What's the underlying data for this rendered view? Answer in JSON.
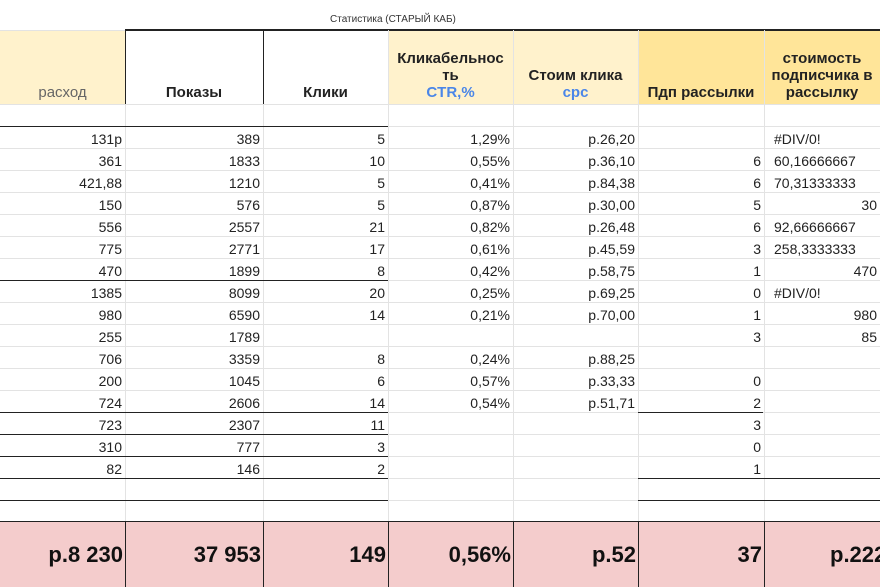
{
  "sheet_title": "Статистика (СТАРЫЙ КАБ)",
  "columns": [
    {
      "key": "rashod",
      "label": "расход",
      "sub": ""
    },
    {
      "key": "pokazy",
      "label": "Показы",
      "sub": ""
    },
    {
      "key": "kliki",
      "label": "Клики",
      "sub": ""
    },
    {
      "key": "ctr",
      "label": "Кликабельнос ть",
      "sub": "CTR,%"
    },
    {
      "key": "cpc",
      "label": "Стоим клика",
      "sub": "cpc"
    },
    {
      "key": "podp",
      "label": "Пдп рассылки",
      "sub": ""
    },
    {
      "key": "cost_sub",
      "label": "стоимость подписчика в рассылку",
      "sub": ""
    }
  ],
  "rows": [
    [
      "131р",
      "389",
      "5",
      "1,29%",
      "р.26,20",
      "",
      "#DIV/0!"
    ],
    [
      "361",
      "1833",
      "10",
      "0,55%",
      "р.36,10",
      "6",
      "60,16666667"
    ],
    [
      "421,88",
      "1210",
      "5",
      "0,41%",
      "р.84,38",
      "6",
      "70,31333333"
    ],
    [
      "150",
      "576",
      "5",
      "0,87%",
      "р.30,00",
      "5",
      "30"
    ],
    [
      "556",
      "2557",
      "21",
      "0,82%",
      "р.26,48",
      "6",
      "92,66666667"
    ],
    [
      "775",
      "2771",
      "17",
      "0,61%",
      "р.45,59",
      "3",
      "258,3333333"
    ],
    [
      "470",
      "1899",
      "8",
      "0,42%",
      "р.58,75",
      "1",
      "470"
    ],
    [
      "1385",
      "8099",
      "20",
      "0,25%",
      "р.69,25",
      "0",
      "#DIV/0!"
    ],
    [
      "980",
      "6590",
      "14",
      "0,21%",
      "р.70,00",
      "1",
      "980"
    ],
    [
      "255",
      "1789",
      "",
      "",
      "",
      "3",
      "85"
    ],
    [
      "706",
      "3359",
      "8",
      "0,24%",
      "р.88,25",
      "",
      ""
    ],
    [
      "200",
      "1045",
      "6",
      "0,57%",
      "р.33,33",
      "0",
      ""
    ],
    [
      "724",
      "2606",
      "14",
      "0,54%",
      "р.51,71",
      "2",
      ""
    ],
    [
      "723",
      "2307",
      "11",
      "",
      "",
      "3",
      ""
    ],
    [
      "310",
      "777",
      "3",
      "",
      "",
      "0",
      ""
    ],
    [
      "82",
      "146",
      "2",
      "",
      "",
      "1",
      ""
    ]
  ],
  "totals": [
    "р.8 230",
    "37 953",
    "149",
    "0,56%",
    "р.52",
    "37",
    "р.222"
  ],
  "colors": {
    "header_bg": "#fff2cc",
    "highlight_bg": "#ffe599",
    "totals_bg": "#f4cccc",
    "sub_label": "#4a86e8"
  }
}
